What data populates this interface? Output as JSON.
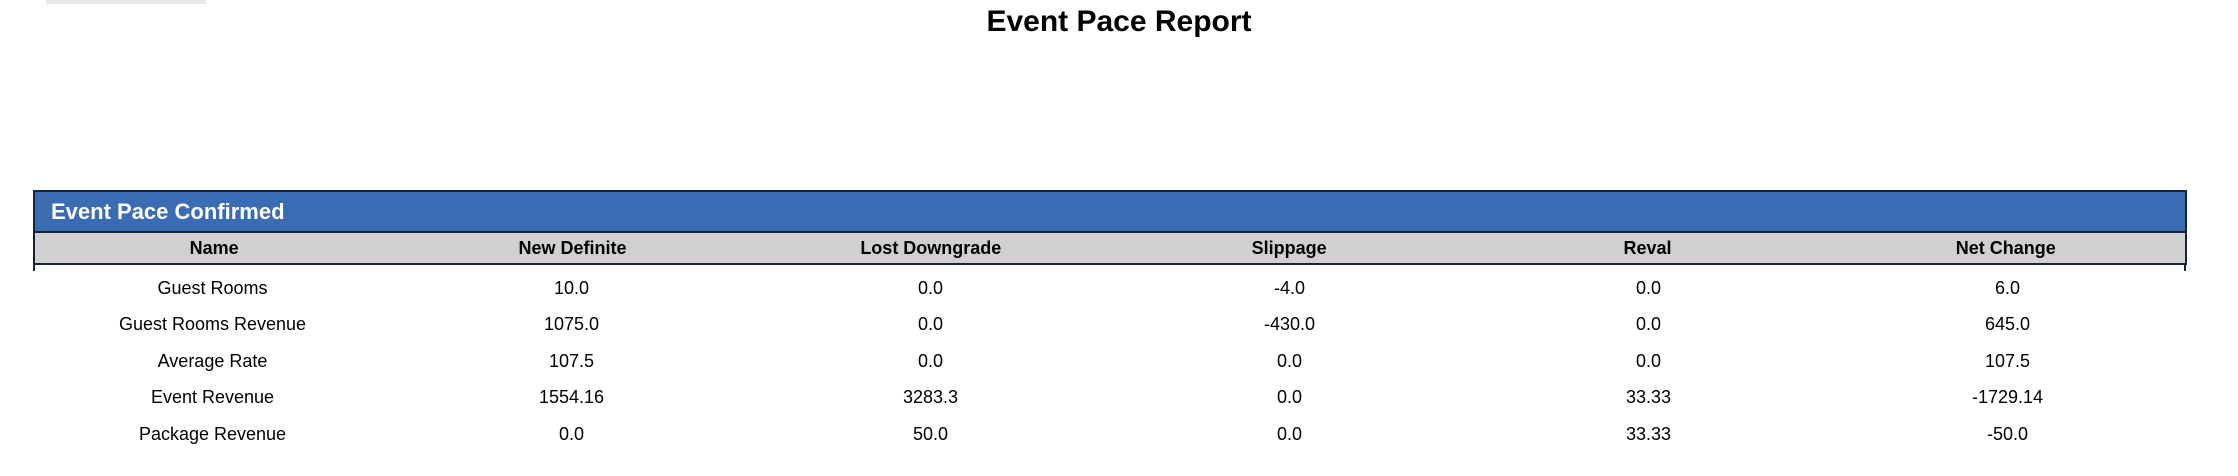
{
  "page_title": "Event Pace Report",
  "table": {
    "section_title": "Event Pace Confirmed",
    "columns": [
      "Name",
      "New Definite",
      "Lost Downgrade",
      "Slippage",
      "Reval",
      "Net Change"
    ],
    "rows": [
      [
        "Guest Rooms",
        "10.0",
        "0.0",
        "-4.0",
        "0.0",
        "6.0"
      ],
      [
        "Guest Rooms Revenue",
        "1075.0",
        "0.0",
        "-430.0",
        "0.0",
        "645.0"
      ],
      [
        "Average Rate",
        "107.5",
        "0.0",
        "0.0",
        "0.0",
        "107.5"
      ],
      [
        "Event Revenue",
        "1554.16",
        "3283.3",
        "0.0",
        "33.33",
        "-1729.14"
      ],
      [
        "Package Revenue",
        "0.0",
        "50.0",
        "0.0",
        "33.33",
        "-50.0"
      ]
    ]
  },
  "colors": {
    "section_header_bg": "#3a6cb4",
    "column_header_bg": "#d0d0d0",
    "table_border": "#16233f",
    "section_title_text": "#ffffff"
  }
}
